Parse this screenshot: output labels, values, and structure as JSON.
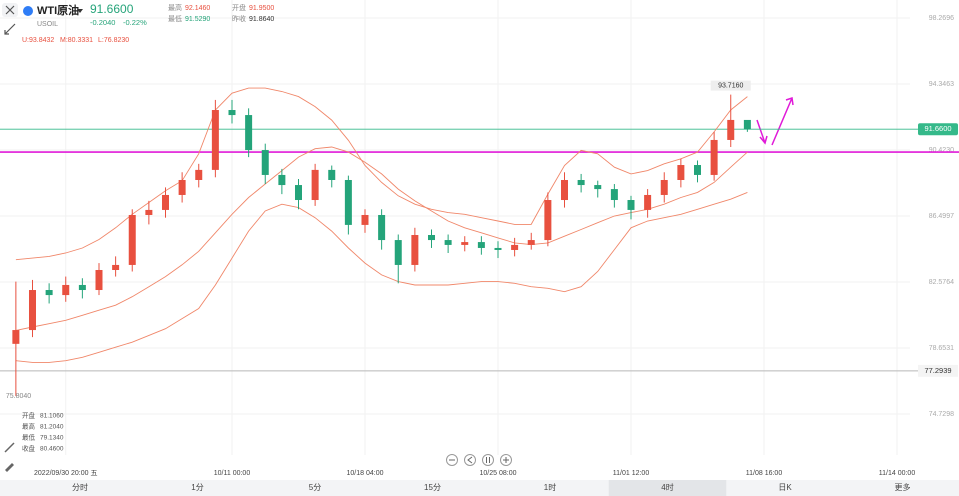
{
  "header": {
    "symbol": "WTI原油",
    "code": "USOIL",
    "price": "91.6600",
    "change": "-0.2040",
    "change_pct": "-0.22%",
    "stats": [
      {
        "label": "最高",
        "value": "92.1460"
      },
      {
        "label": "开盘",
        "value": "91.9500"
      },
      {
        "label": "最低",
        "value": "91.5290"
      },
      {
        "label": "昨收",
        "value": "91.8640"
      }
    ],
    "indicator": [
      "U:93.8432",
      "M:80.3331",
      "L:76.8230"
    ]
  },
  "crosshair_info": [
    {
      "label": "开盘",
      "value": "81.1060"
    },
    {
      "label": "最高",
      "value": "81.2040"
    },
    {
      "label": "最低",
      "value": "79.1340"
    },
    {
      "label": "收盘",
      "value": "80.4600"
    }
  ],
  "timeframes": [
    "分时",
    "1分",
    "5分",
    "15分",
    "1时",
    "4时",
    "日K",
    "更多"
  ],
  "selected_timeframe": 5,
  "chart_data": {
    "type": "candlestick",
    "categories": [
      null,
      null,
      null,
      "2022/09/30 20:00 五",
      null,
      null,
      null,
      null,
      null,
      null,
      null,
      null,
      null,
      "10/11 00:00",
      null,
      null,
      null,
      null,
      null,
      null,
      null,
      "10/18 04:00",
      null,
      null,
      null,
      null,
      null,
      null,
      null,
      "10/25 08:00",
      null,
      null,
      null,
      null,
      null,
      null,
      null,
      "11/01 12:00",
      null,
      null,
      null,
      null,
      null,
      null,
      null,
      "11/08 16:00",
      null,
      null,
      null,
      null,
      null,
      null,
      null,
      "11/14 00:00"
    ],
    "open": [
      78.9,
      79.72,
      82.1,
      81.8,
      82.4,
      82.1,
      83.29,
      83.59,
      86.56,
      86.86,
      87.75,
      88.64,
      89.24,
      92.8,
      92.5,
      90.42,
      88.94,
      88.34,
      87.45,
      89.24,
      88.64,
      85.97,
      86.56,
      85.07,
      83.59,
      85.37,
      85.07,
      84.78,
      84.95,
      84.6,
      84.48,
      84.78,
      85.07,
      87.45,
      88.64,
      88.34,
      88.1,
      87.45,
      86.86,
      87.75,
      88.64,
      89.53,
      88.94,
      91.02,
      92.21,
      null,
      null,
      null,
      null,
      null,
      null,
      null,
      null,
      null
    ],
    "high": [
      82.6,
      82.7,
      82.5,
      82.9,
      82.8,
      83.7,
      84.1,
      86.9,
      87.4,
      88.2,
      89.1,
      89.6,
      93.4,
      93.4,
      92.9,
      90.8,
      89.3,
      88.7,
      89.6,
      89.5,
      88.9,
      86.9,
      86.9,
      85.4,
      85.8,
      85.7,
      85.4,
      85.3,
      85.3,
      85.0,
      85.2,
      85.5,
      87.9,
      89.1,
      89.0,
      88.6,
      88.4,
      87.7,
      88.1,
      89.1,
      89.9,
      89.8,
      91.5,
      93.716,
      92.15,
      null,
      null,
      null,
      null,
      null,
      null,
      null,
      null,
      null
    ],
    "low": [
      75.804,
      79.3,
      81.3,
      81.4,
      81.6,
      81.8,
      82.9,
      83.2,
      86.0,
      86.4,
      87.3,
      88.2,
      88.8,
      92.0,
      90.0,
      88.4,
      87.8,
      86.9,
      87.1,
      88.2,
      85.4,
      85.5,
      84.5,
      82.5,
      83.2,
      84.6,
      84.3,
      84.4,
      84.2,
      84.0,
      84.1,
      84.5,
      84.7,
      87.0,
      87.9,
      87.6,
      87.0,
      86.3,
      86.4,
      87.3,
      88.2,
      88.5,
      88.6,
      90.6,
      91.5,
      null,
      null,
      null,
      null,
      null,
      null,
      null,
      null,
      null
    ],
    "close": [
      79.72,
      82.1,
      81.8,
      82.4,
      82.1,
      83.29,
      83.59,
      86.56,
      86.86,
      87.75,
      88.64,
      89.24,
      92.8,
      92.5,
      90.42,
      88.94,
      88.34,
      87.45,
      89.24,
      88.64,
      85.97,
      86.56,
      85.07,
      83.59,
      85.37,
      85.07,
      84.78,
      84.95,
      84.6,
      84.48,
      84.78,
      85.07,
      87.45,
      88.64,
      88.34,
      88.1,
      87.45,
      86.86,
      87.75,
      88.64,
      89.53,
      88.94,
      91.02,
      92.21,
      91.66,
      null,
      null,
      null,
      null,
      null,
      null,
      null,
      null,
      null
    ],
    "band_upper": [
      83.9,
      84.0,
      84.1,
      84.3,
      84.6,
      85.1,
      85.8,
      86.6,
      87.3,
      88.0,
      88.6,
      90.2,
      92.8,
      93.8,
      94.1,
      94.1,
      93.9,
      93.6,
      93.0,
      92.2,
      91.0,
      89.5,
      88.5,
      87.7,
      87.2,
      86.9,
      86.7,
      86.6,
      86.4,
      86.2,
      86.0,
      86.0,
      87.8,
      89.5,
      90.4,
      90.2,
      89.4,
      89.0,
      89.2,
      89.6,
      89.9,
      90.3,
      91.5,
      92.8,
      93.6,
      null,
      null,
      null,
      null,
      null,
      null,
      null,
      null,
      null
    ],
    "band_middle": [
      79.7,
      79.9,
      80.1,
      80.3,
      80.6,
      80.9,
      81.2,
      81.7,
      82.3,
      82.9,
      83.6,
      84.4,
      85.5,
      86.6,
      87.6,
      88.4,
      89.2,
      90.0,
      90.5,
      90.6,
      90.3,
      89.7,
      89.0,
      88.1,
      87.4,
      86.8,
      86.2,
      85.8,
      85.5,
      85.2,
      84.9,
      84.8,
      84.9,
      85.3,
      85.7,
      86.1,
      86.5,
      86.7,
      86.9,
      87.2,
      87.6,
      87.9,
      88.5,
      89.4,
      90.3,
      null,
      null,
      null,
      null,
      null,
      null,
      null,
      null,
      null
    ],
    "band_lower": [
      77.9,
      77.8,
      77.8,
      77.9,
      78.1,
      78.4,
      78.7,
      79.0,
      79.4,
      79.8,
      80.4,
      81.0,
      82.4,
      84.0,
      85.6,
      86.8,
      87.2,
      87.0,
      86.4,
      85.6,
      84.6,
      83.7,
      83.0,
      82.6,
      82.4,
      82.4,
      82.4,
      82.5,
      82.6,
      82.6,
      82.5,
      82.3,
      82.2,
      82.0,
      82.3,
      83.2,
      84.5,
      85.8,
      86.2,
      86.4,
      86.6,
      86.9,
      87.2,
      87.5,
      87.9,
      null,
      null,
      null,
      null,
      null,
      null,
      null,
      null,
      null
    ],
    "up_color": "#e8503f",
    "down_color": "#24a47a",
    "band_color": "#f0876a",
    "ylim": [
      72.293,
      99.3395
    ],
    "yticks": [
      {
        "value": 98.2696,
        "label": "98.2696"
      },
      {
        "value": 94.3463,
        "label": "94.3463"
      },
      {
        "value": 90.423,
        "label": "90.4230"
      },
      {
        "value": 86.4997,
        "label": "86.4997"
      },
      {
        "value": 82.5764,
        "label": "82.5764"
      },
      {
        "value": 78.6531,
        "label": "78.6531"
      },
      {
        "value": 74.7298,
        "label": "74.7298"
      }
    ],
    "max_label": "93.7160",
    "min_label": "75.8040",
    "price_line": {
      "value": 91.66,
      "label": "91.6600",
      "color": "#35b98a"
    },
    "ref_line": {
      "value": 77.2939,
      "label": "77.2939",
      "color": "#b8b8b8"
    },
    "drawn_line": {
      "value": 90.3,
      "color": "#e01ad8"
    }
  }
}
